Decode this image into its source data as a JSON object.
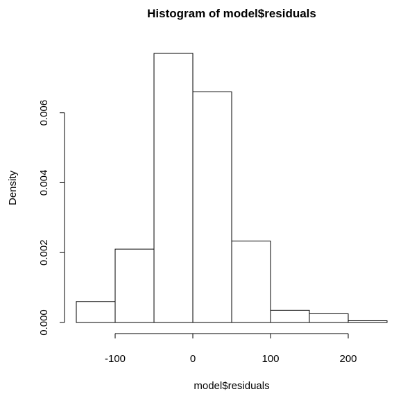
{
  "chart_data": {
    "type": "histogram",
    "title": "Histogram of model$residuals",
    "xlabel": "model$residuals",
    "ylabel": "Density",
    "bin_edges": [
      -150,
      -100,
      -50,
      0,
      50,
      100,
      150,
      200,
      250
    ],
    "values": [
      0.0006,
      0.0021,
      0.0077,
      0.0066,
      0.00233,
      0.00035,
      0.00025,
      5e-05
    ],
    "x_ticks": [
      -100,
      0,
      100,
      200
    ],
    "x_tick_labels": [
      "-100",
      "0",
      "100",
      "200"
    ],
    "y_ticks": [
      0,
      0.002,
      0.004,
      0.006
    ],
    "y_tick_labels": [
      "0.000",
      "0.002",
      "0.004",
      "0.006"
    ],
    "xlim": [
      -150,
      250
    ],
    "ylim": [
      0,
      0.0077
    ],
    "grid": false,
    "bar_fill": "#ffffff",
    "bar_stroke": "#000000"
  }
}
